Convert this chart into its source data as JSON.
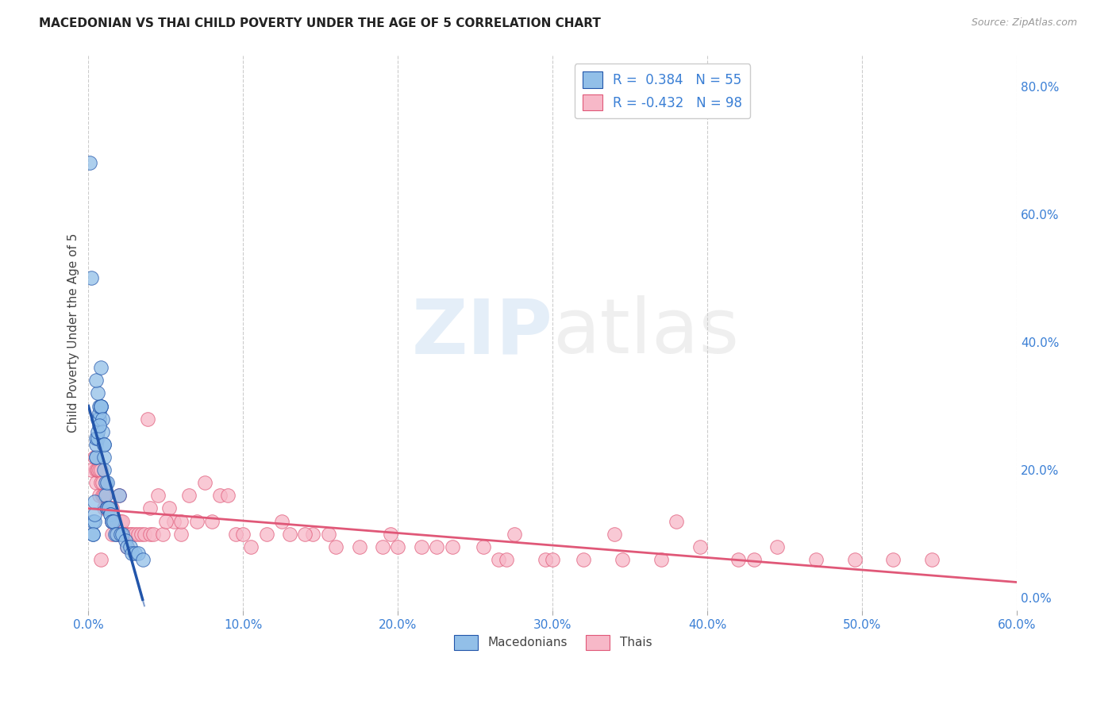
{
  "title": "MACEDONIAN VS THAI CHILD POVERTY UNDER THE AGE OF 5 CORRELATION CHART",
  "source": "Source: ZipAtlas.com",
  "ylabel_label": "Child Poverty Under the Age of 5",
  "xlim": [
    0.0,
    0.6
  ],
  "ylim": [
    -0.02,
    0.85
  ],
  "x_ticks": [
    0.0,
    0.1,
    0.2,
    0.3,
    0.4,
    0.5,
    0.6
  ],
  "y_ticks_right": [
    0.0,
    0.2,
    0.4,
    0.6,
    0.8
  ],
  "y_tick_labels_right": [
    "0.0%",
    "20.0%",
    "40.0%",
    "60.0%",
    "80.0%"
  ],
  "x_tick_labels": [
    "0.0%",
    "10.0%",
    "20.0%",
    "30.0%",
    "40.0%",
    "50.0%",
    "60.0%"
  ],
  "macedonian_color": "#92bfe8",
  "thai_color": "#f7b8c8",
  "macedonian_R": 0.384,
  "macedonian_N": 55,
  "thai_R": -0.432,
  "thai_N": 98,
  "macedonian_line_color": "#2255aa",
  "thai_line_color": "#e05878",
  "background_color": "#ffffff",
  "grid_color": "#cccccc",
  "macedonian_scatter_x": [
    0.001,
    0.002,
    0.003,
    0.003,
    0.004,
    0.004,
    0.004,
    0.005,
    0.005,
    0.005,
    0.005,
    0.006,
    0.006,
    0.006,
    0.007,
    0.007,
    0.007,
    0.008,
    0.008,
    0.008,
    0.009,
    0.009,
    0.01,
    0.01,
    0.01,
    0.011,
    0.011,
    0.012,
    0.012,
    0.013,
    0.013,
    0.014,
    0.014,
    0.015,
    0.015,
    0.016,
    0.017,
    0.018,
    0.02,
    0.021,
    0.022,
    0.024,
    0.025,
    0.027,
    0.028,
    0.03,
    0.032,
    0.035,
    0.006,
    0.005,
    0.003,
    0.008,
    0.007,
    0.01,
    0.012
  ],
  "macedonian_scatter_y": [
    0.68,
    0.5,
    0.1,
    0.12,
    0.12,
    0.13,
    0.15,
    0.22,
    0.22,
    0.24,
    0.25,
    0.25,
    0.26,
    0.28,
    0.28,
    0.29,
    0.3,
    0.3,
    0.3,
    0.3,
    0.28,
    0.26,
    0.24,
    0.22,
    0.2,
    0.18,
    0.16,
    0.14,
    0.14,
    0.14,
    0.14,
    0.13,
    0.13,
    0.12,
    0.12,
    0.12,
    0.1,
    0.1,
    0.16,
    0.1,
    0.1,
    0.09,
    0.08,
    0.08,
    0.07,
    0.07,
    0.07,
    0.06,
    0.32,
    0.34,
    0.1,
    0.36,
    0.27,
    0.24,
    0.18
  ],
  "thai_scatter_x": [
    0.002,
    0.004,
    0.005,
    0.005,
    0.006,
    0.006,
    0.007,
    0.007,
    0.008,
    0.008,
    0.009,
    0.009,
    0.01,
    0.01,
    0.011,
    0.011,
    0.012,
    0.012,
    0.013,
    0.014,
    0.015,
    0.015,
    0.016,
    0.016,
    0.017,
    0.018,
    0.018,
    0.019,
    0.02,
    0.021,
    0.022,
    0.023,
    0.024,
    0.025,
    0.027,
    0.028,
    0.03,
    0.032,
    0.034,
    0.036,
    0.038,
    0.04,
    0.042,
    0.045,
    0.048,
    0.052,
    0.055,
    0.06,
    0.065,
    0.07,
    0.075,
    0.085,
    0.095,
    0.105,
    0.115,
    0.13,
    0.145,
    0.16,
    0.175,
    0.195,
    0.215,
    0.235,
    0.255,
    0.275,
    0.295,
    0.32,
    0.345,
    0.37,
    0.395,
    0.42,
    0.445,
    0.47,
    0.495,
    0.52,
    0.545,
    0.008,
    0.015,
    0.025,
    0.04,
    0.06,
    0.08,
    0.1,
    0.125,
    0.155,
    0.19,
    0.225,
    0.265,
    0.3,
    0.34,
    0.38,
    0.43,
    0.01,
    0.02,
    0.05,
    0.09,
    0.14,
    0.2,
    0.27
  ],
  "thai_scatter_y": [
    0.2,
    0.22,
    0.18,
    0.2,
    0.2,
    0.2,
    0.2,
    0.16,
    0.2,
    0.18,
    0.18,
    0.16,
    0.16,
    0.16,
    0.14,
    0.14,
    0.14,
    0.14,
    0.14,
    0.14,
    0.14,
    0.12,
    0.12,
    0.12,
    0.12,
    0.12,
    0.12,
    0.1,
    0.12,
    0.12,
    0.12,
    0.1,
    0.1,
    0.1,
    0.1,
    0.1,
    0.1,
    0.1,
    0.1,
    0.1,
    0.28,
    0.1,
    0.1,
    0.16,
    0.1,
    0.14,
    0.12,
    0.1,
    0.16,
    0.12,
    0.18,
    0.16,
    0.1,
    0.08,
    0.1,
    0.1,
    0.1,
    0.08,
    0.08,
    0.1,
    0.08,
    0.08,
    0.08,
    0.1,
    0.06,
    0.06,
    0.06,
    0.06,
    0.08,
    0.06,
    0.08,
    0.06,
    0.06,
    0.06,
    0.06,
    0.06,
    0.1,
    0.08,
    0.14,
    0.12,
    0.12,
    0.1,
    0.12,
    0.1,
    0.08,
    0.08,
    0.06,
    0.06,
    0.1,
    0.12,
    0.06,
    0.14,
    0.16,
    0.12,
    0.16,
    0.1,
    0.08,
    0.06
  ]
}
